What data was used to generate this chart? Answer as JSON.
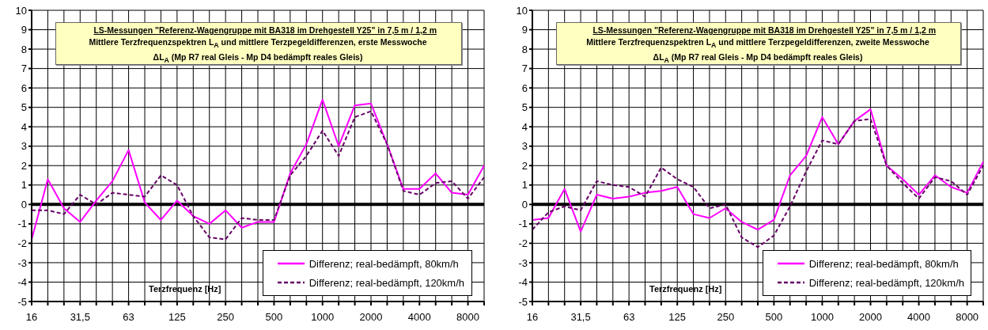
{
  "chart_data": [
    {
      "type": "line",
      "title": "LS-Messungen  \"Referenz-Wagengruppe mit BA318 im Drehgestell Y25\" in 7,5 m / 1,2 m",
      "subtitle": "Mittlere Terzfrequenzspektren L$_{A}$ und mittlere Terzpegeldifferenzen, erste Messwoche\nΔL$_{A}$ (Mp R7 real Gleis - Mp D4 bedämpft reales Gleis)",
      "xlabel": "Terzfrequenz [Hz]",
      "categories": [
        "16",
        null,
        null,
        "31,5",
        null,
        null,
        "63",
        null,
        null,
        "125",
        null,
        null,
        "250",
        null,
        null,
        "500",
        null,
        null,
        "1000",
        null,
        null,
        "2000",
        null,
        null,
        "4000",
        null,
        null,
        "8000",
        null
      ],
      "series": [
        {
          "name": "Differenz; real-bedämpft, 80km/h",
          "color": "#ff00ff",
          "line_style": "solid",
          "values": [
            -1.8,
            1.3,
            -0.2,
            -0.9,
            0.2,
            1.2,
            2.8,
            0.1,
            -0.8,
            0.2,
            -0.6,
            -1.0,
            -0.3,
            -1.2,
            -0.9,
            -0.9,
            1.6,
            3.1,
            5.4,
            3.0,
            5.1,
            5.2,
            3.1,
            0.8,
            0.8,
            1.6,
            0.6,
            0.5,
            2.0
          ]
        },
        {
          "name": "Differenz; real-bedämpft, 120km/h",
          "color": "#660066",
          "line_style": "dashed",
          "values": [
            -0.3,
            -0.3,
            -0.5,
            0.5,
            0.0,
            0.6,
            0.5,
            0.4,
            1.5,
            1.0,
            -0.6,
            -1.7,
            -1.8,
            -0.7,
            -0.8,
            -0.8,
            1.5,
            2.5,
            3.8,
            2.5,
            4.5,
            4.8,
            3.1,
            0.7,
            0.5,
            1.1,
            1.2,
            0.3,
            1.4
          ]
        }
      ],
      "ylim": [
        -5,
        10
      ],
      "yticks": [
        -5,
        -4,
        -3,
        -2,
        -1,
        0,
        1,
        2,
        3,
        4,
        5,
        6,
        7,
        8,
        9,
        10
      ],
      "grid": true,
      "legend": "bottom right",
      "marker": "none",
      "ref_lines": [
        {
          "axis": "y",
          "value": 0,
          "color": "#000000"
        }
      ]
    },
    {
      "type": "line",
      "title": "LS-Messungen  \"Referenz-Wagengruppe mit BA318 im Drehgestell Y25\" in 7,5 m / 1,2 m",
      "subtitle": "Mittlere Terzfrequenzspektren L$_{A}$ und mittlere Terzpegeldifferenzen, zweite Messwoche\nΔL$_{A}$ (Mp R7 real Gleis - Mp D4 bedämpft reales Gleis)",
      "xlabel": "Terzfrequenz [Hz]",
      "categories": [
        "16",
        null,
        null,
        "31,5",
        null,
        null,
        "63",
        null,
        null,
        "125",
        null,
        null,
        "250",
        null,
        null,
        "500",
        null,
        null,
        "1000",
        null,
        null,
        "2000",
        null,
        null,
        "4000",
        null,
        null,
        "8000",
        null
      ],
      "series": [
        {
          "name": "Differenz; real-bedämpft, 80km/h",
          "color": "#ff00ff",
          "line_style": "solid",
          "values": [
            -0.8,
            -0.7,
            0.8,
            -1.4,
            0.5,
            0.3,
            0.4,
            0.6,
            0.7,
            0.9,
            -0.5,
            -0.7,
            -0.2,
            -0.9,
            -1.3,
            -0.8,
            1.5,
            2.5,
            4.5,
            3.1,
            4.3,
            4.9,
            2.0,
            1.3,
            0.5,
            1.5,
            0.9,
            0.6,
            2.2
          ]
        },
        {
          "name": "Differenz; real-bedämpft, 120km/h",
          "color": "#660066",
          "line_style": "dashed",
          "values": [
            -1.3,
            -0.4,
            -0.1,
            -0.3,
            1.2,
            1.0,
            0.9,
            0.4,
            1.9,
            1.3,
            0.9,
            -0.2,
            0.0,
            -1.7,
            -2.2,
            -1.6,
            -0.1,
            1.7,
            3.3,
            3.1,
            4.3,
            4.4,
            2.0,
            1.1,
            0.3,
            1.4,
            1.2,
            0.5,
            2.0
          ]
        }
      ],
      "ylim": [
        -5,
        10
      ],
      "yticks": [
        -5,
        -4,
        -3,
        -2,
        -1,
        0,
        1,
        2,
        3,
        4,
        5,
        6,
        7,
        8,
        9,
        10
      ],
      "grid": true,
      "legend": "bottom right",
      "marker": "none",
      "ref_lines": [
        {
          "axis": "y",
          "value": 0,
          "color": "#000000"
        }
      ]
    }
  ]
}
